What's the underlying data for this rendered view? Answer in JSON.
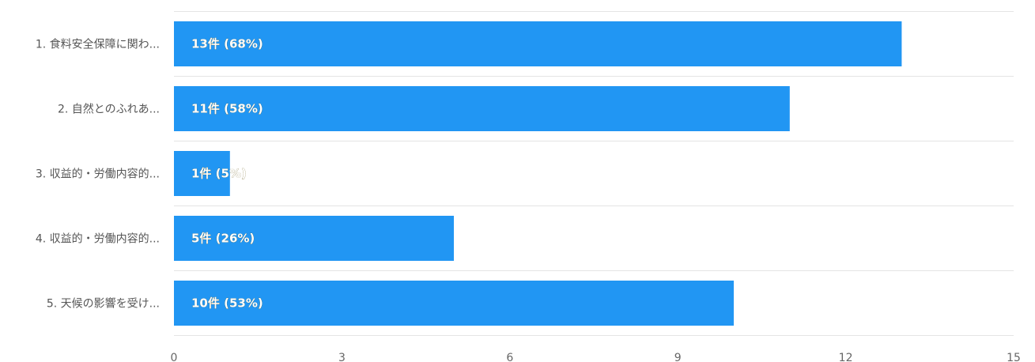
{
  "chart_data": {
    "type": "bar",
    "orientation": "horizontal",
    "categories": [
      "1. 食料安全保障に関わ...",
      "2. 自然とのふれあ...",
      "3. 収益的・労働内容的...",
      "4. 収益的・労働内容的...",
      "5. 天候の影響を受け..."
    ],
    "values": [
      13,
      11,
      1,
      5,
      10
    ],
    "data_labels": [
      "13件 (68%)",
      "11件 (58%)",
      "1件 (5%)",
      "5件 (26%)",
      "10件 (53%)"
    ],
    "xlim": [
      0,
      15
    ],
    "xticks": [
      "0",
      "3",
      "6",
      "9",
      "12",
      "15"
    ],
    "grid": true,
    "bar_color": "#2196f3",
    "title": "",
    "xlabel": "",
    "ylabel": ""
  }
}
